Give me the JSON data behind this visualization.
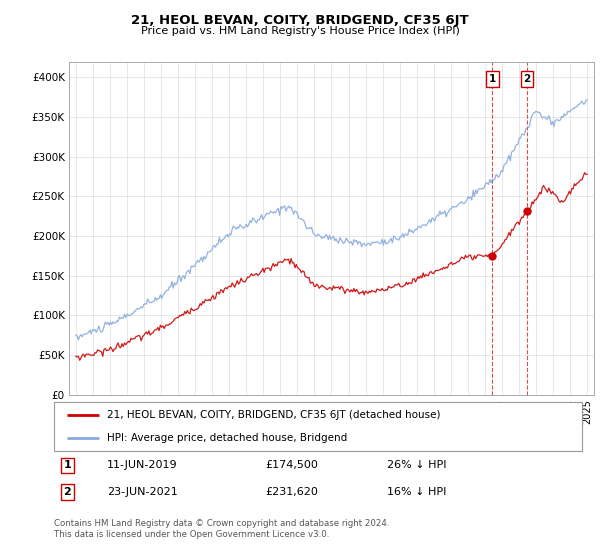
{
  "title": "21, HEOL BEVAN, COITY, BRIDGEND, CF35 6JT",
  "subtitle": "Price paid vs. HM Land Registry's House Price Index (HPI)",
  "ylim": [
    0,
    420000
  ],
  "yticks": [
    0,
    50000,
    100000,
    150000,
    200000,
    250000,
    300000,
    350000,
    400000
  ],
  "ytick_labels": [
    "£0",
    "£50K",
    "£100K",
    "£150K",
    "£200K",
    "£250K",
    "£300K",
    "£350K",
    "£400K"
  ],
  "legend_line1": "21, HEOL BEVAN, COITY, BRIDGEND, CF35 6JT (detached house)",
  "legend_line2": "HPI: Average price, detached house, Bridgend",
  "sale1_date": "11-JUN-2019",
  "sale1_price": 174500,
  "sale1_pct": "26% ↓ HPI",
  "sale2_date": "23-JUN-2021",
  "sale2_price": 231620,
  "sale2_pct": "16% ↓ HPI",
  "footer": "Contains HM Land Registry data © Crown copyright and database right 2024.\nThis data is licensed under the Open Government Licence v3.0.",
  "line_color_property": "#cc0000",
  "line_color_hpi": "#88aadd",
  "vline_color": "#cc0000",
  "marker_color": "#cc0000",
  "grid_color": "#dddddd",
  "sale1_x": 2019.44,
  "sale2_x": 2021.47,
  "xmin": 1994.6,
  "xmax": 2025.4
}
